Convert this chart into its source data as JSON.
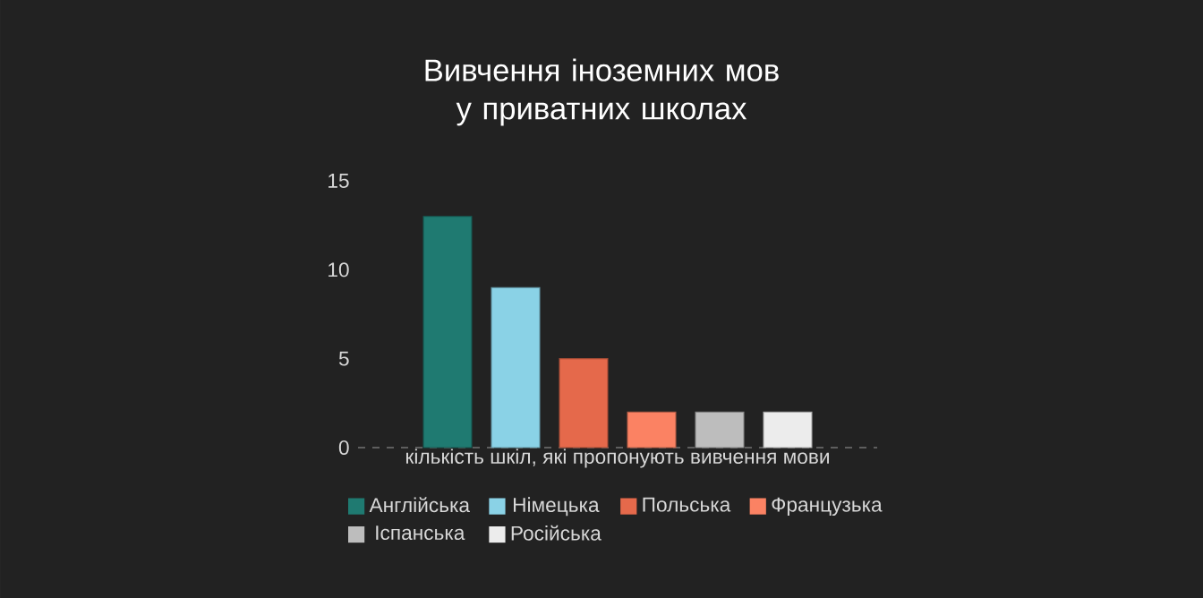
{
  "chart_data": {
    "type": "bar",
    "title": "Вивчення іноземних мов у приватних школах",
    "categories": [
      "кількість шкіл, які пропонують вивчення мови"
    ],
    "series": [
      {
        "name": "Англійська",
        "color": "#1f7a71",
        "values": [
          13
        ]
      },
      {
        "name": "Німецька",
        "color": "#8ad2e6",
        "values": [
          9
        ]
      },
      {
        "name": "Польська",
        "color": "#e5694b",
        "values": [
          5
        ]
      },
      {
        "name": "Французька",
        "color": "#fb8263",
        "values": [
          2
        ]
      },
      {
        "name": "Іспанська",
        "color": "#bdbdbd",
        "values": [
          2
        ]
      },
      {
        "name": "Російська",
        "color": "#ececec",
        "values": [
          2
        ]
      }
    ],
    "ylim": [
      0,
      15
    ],
    "yticks": [
      0,
      5,
      10,
      15
    ],
    "legend": "bottom"
  }
}
